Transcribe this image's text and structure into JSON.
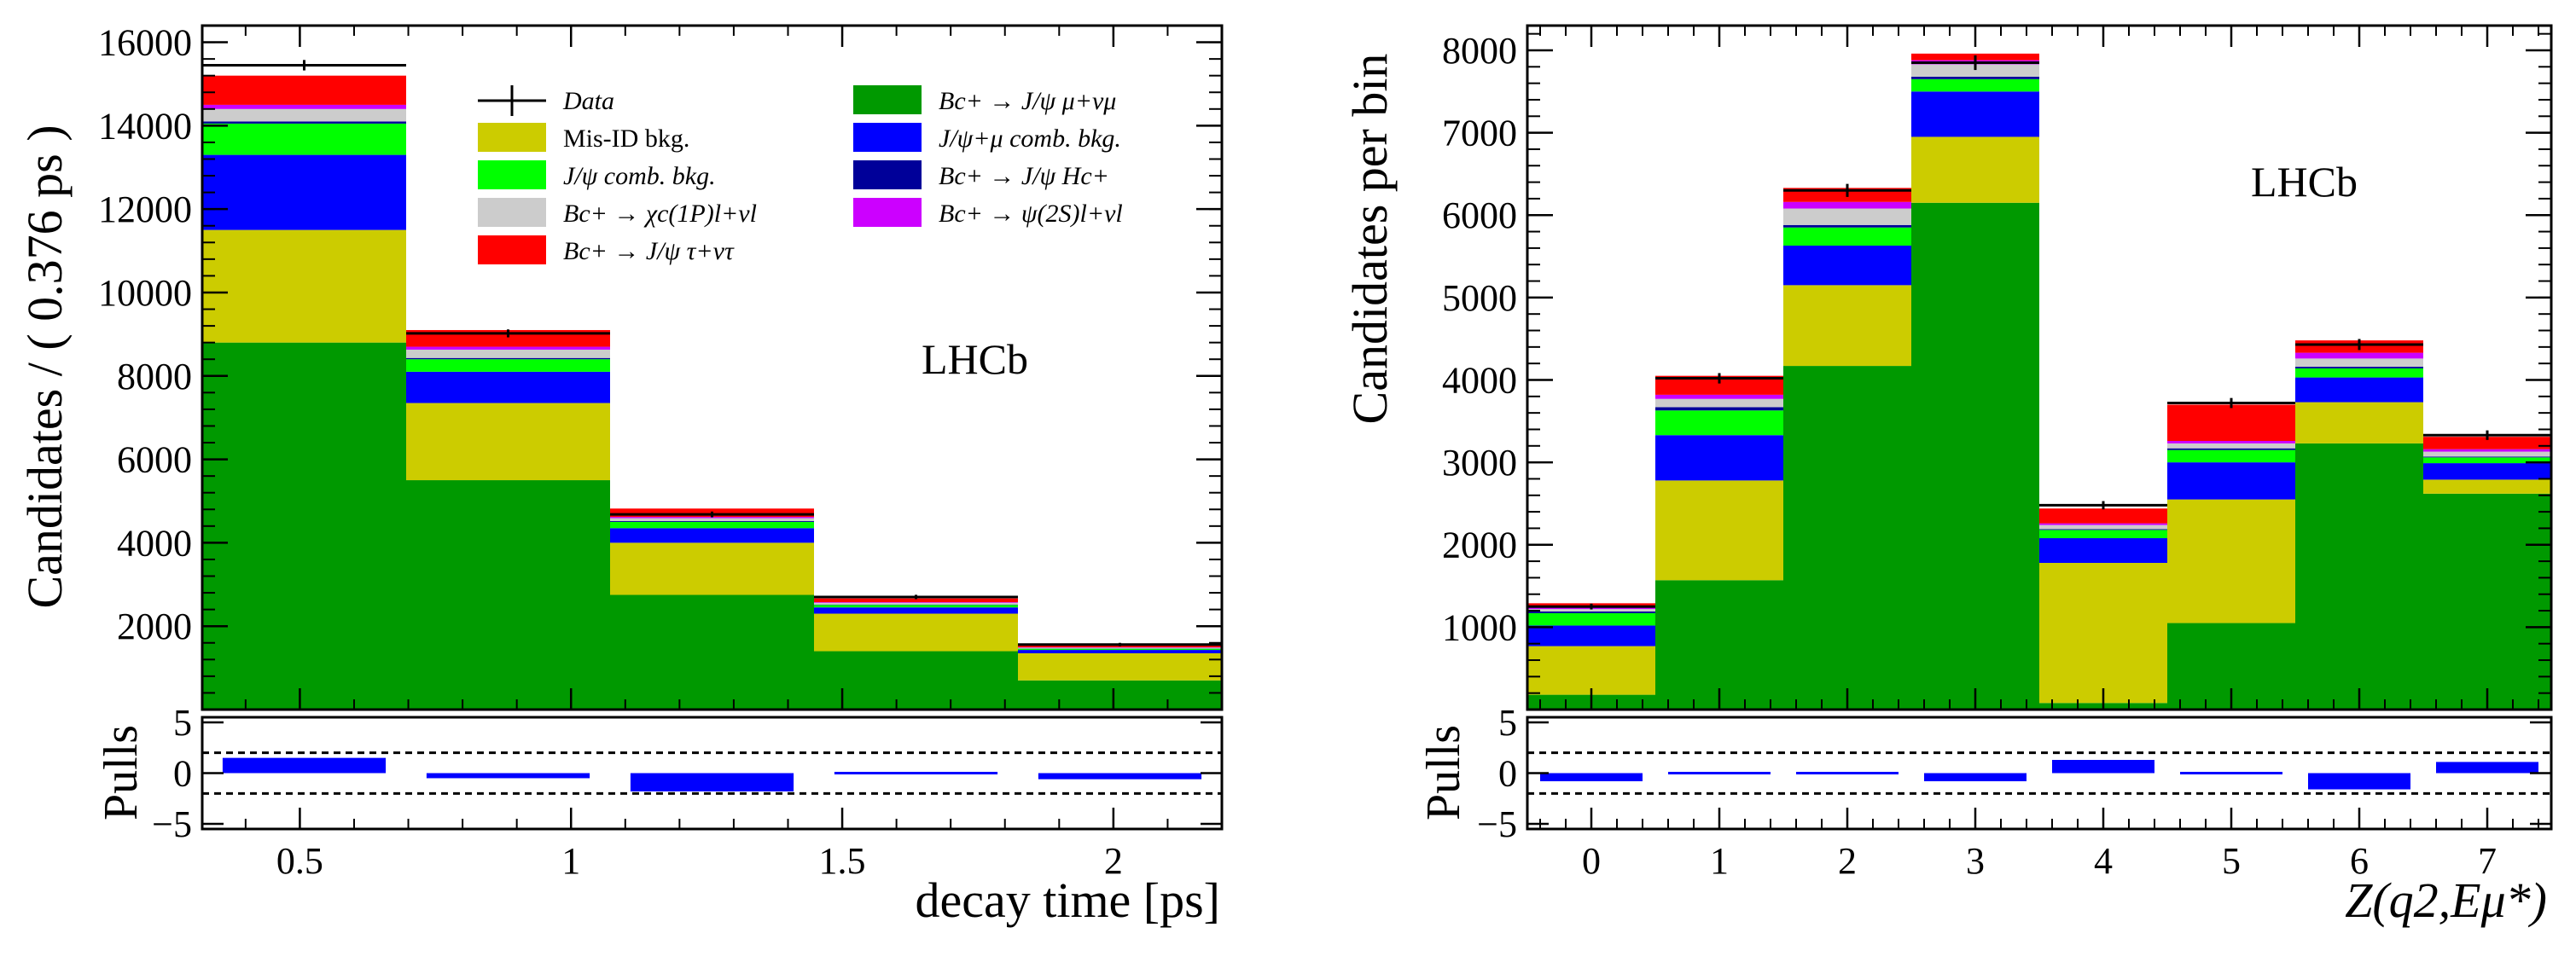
{
  "colors": {
    "bc_jpsi_mu_nu": "#009900",
    "misid": "#cccc00",
    "jpsi_mu_comb": "#0000ff",
    "jpsi_comb": "#00ff00",
    "bc_jpsi_hc": "#000099",
    "bc_chic": "#cccccc",
    "bc_psi2s": "#cc00ff",
    "bc_jpsi_tau_nu": "#ff0000",
    "data": "#000000",
    "pulls": "#0000ff"
  },
  "legend": {
    "items": [
      {
        "key": "data",
        "label": "Data"
      },
      {
        "key": "misid",
        "label": "Mis-ID bkg."
      },
      {
        "key": "jpsi_comb",
        "label": "J/ψ comb. bkg."
      },
      {
        "key": "bc_chic",
        "label": "Bc+ → χc(1P)l+νl"
      },
      {
        "key": "bc_jpsi_tau_nu",
        "label": "Bc+ → J/ψ τ+ντ"
      },
      {
        "key": "bc_jpsi_mu_nu",
        "label": "Bc+ → J/ψ μ+νμ"
      },
      {
        "key": "jpsi_mu_comb",
        "label": "J/ψ+μ comb. bkg."
      },
      {
        "key": "bc_jpsi_hc",
        "label": "Bc+ → J/ψ Hc+"
      },
      {
        "key": "bc_psi2s",
        "label": "Bc+ → ψ(2S)l+νl"
      }
    ]
  },
  "chart_data": [
    {
      "type": "bar",
      "stacked": true,
      "title": "",
      "label": "LHCb",
      "xlabel": "decay time [ps]",
      "ylabel": "Candidates / ( 0.376 ps )",
      "pull_label": "Pulls",
      "xlim": [
        0.32,
        2.2
      ],
      "ylim": [
        0,
        16400
      ],
      "x_ticks": [
        "0.5",
        "1",
        "1.5",
        "2"
      ],
      "y_ticks": [
        "2000",
        "4000",
        "6000",
        "8000",
        "10000",
        "12000",
        "14000",
        "16000"
      ],
      "pull_ticks": [
        "5",
        "0",
        "−5"
      ],
      "pull_ylim": [
        -5.5,
        5.5
      ],
      "pull_lines": [
        2,
        -2
      ],
      "bin_edges": [
        0.32,
        0.696,
        1.072,
        1.448,
        1.824,
        2.2
      ],
      "series": [
        {
          "key": "bc_jpsi_mu_nu",
          "values": [
            8800,
            5500,
            2750,
            1400,
            700
          ]
        },
        {
          "key": "misid",
          "values": [
            2700,
            1850,
            1250,
            900,
            650
          ]
        },
        {
          "key": "jpsi_mu_comb",
          "values": [
            1800,
            750,
            350,
            150,
            80
          ]
        },
        {
          "key": "jpsi_comb",
          "values": [
            750,
            300,
            150,
            60,
            30
          ]
        },
        {
          "key": "bc_jpsi_hc",
          "values": [
            50,
            30,
            20,
            10,
            5
          ]
        },
        {
          "key": "bc_chic",
          "values": [
            300,
            200,
            70,
            40,
            20
          ]
        },
        {
          "key": "bc_psi2s",
          "values": [
            100,
            70,
            30,
            15,
            8
          ]
        },
        {
          "key": "bc_jpsi_tau_nu",
          "values": [
            700,
            400,
            200,
            90,
            40
          ]
        }
      ],
      "data_points": [
        15450,
        9020,
        4680,
        2700,
        1560
      ],
      "data_errors": [
        125,
        95,
        68,
        52,
        40
      ],
      "pulls": [
        1.5,
        -0.5,
        -1.8,
        -0.1,
        -0.6
      ]
    },
    {
      "type": "bar",
      "stacked": true,
      "title": "",
      "label": "LHCb",
      "xlabel": "Z(q2,Eμ*)",
      "ylabel": "Candidates per bin",
      "pull_label": "Pulls",
      "xlim": [
        -0.5,
        7.5
      ],
      "ylim": [
        0,
        8300
      ],
      "x_ticks": [
        "0",
        "1",
        "2",
        "3",
        "4",
        "5",
        "6",
        "7"
      ],
      "y_ticks": [
        "1000",
        "2000",
        "3000",
        "4000",
        "5000",
        "6000",
        "7000",
        "8000"
      ],
      "pull_ticks": [
        "5",
        "0",
        "−5"
      ],
      "pull_ylim": [
        -5.5,
        5.5
      ],
      "pull_lines": [
        2,
        -2
      ],
      "bin_edges": [
        -0.5,
        0.5,
        1.5,
        2.5,
        3.5,
        4.5,
        5.5,
        6.5,
        7.5
      ],
      "series": [
        {
          "key": "bc_jpsi_mu_nu",
          "values": [
            180,
            1570,
            4170,
            6150,
            80,
            1050,
            3230,
            2620
          ]
        },
        {
          "key": "misid",
          "values": [
            590,
            1210,
            980,
            800,
            1700,
            1500,
            500,
            170
          ]
        },
        {
          "key": "jpsi_mu_comb",
          "values": [
            250,
            550,
            480,
            550,
            300,
            450,
            300,
            200
          ]
        },
        {
          "key": "jpsi_comb",
          "values": [
            150,
            300,
            220,
            150,
            100,
            150,
            110,
            70
          ]
        },
        {
          "key": "bc_jpsi_hc",
          "values": [
            20,
            40,
            30,
            30,
            10,
            20,
            20,
            10
          ]
        },
        {
          "key": "bc_chic",
          "values": [
            30,
            100,
            200,
            150,
            50,
            60,
            100,
            60
          ]
        },
        {
          "key": "bc_psi2s",
          "values": [
            20,
            50,
            80,
            50,
            20,
            30,
            70,
            30
          ]
        },
        {
          "key": "bc_jpsi_tau_nu",
          "values": [
            50,
            230,
            170,
            80,
            180,
            440,
            150,
            150
          ]
        }
      ],
      "data_points": [
        1250,
        4020,
        6300,
        7850,
        2480,
        3720,
        4430,
        3330
      ],
      "data_errors": [
        35,
        63,
        79,
        89,
        50,
        61,
        67,
        58
      ],
      "pulls": [
        -0.8,
        0.2,
        -0.1,
        -0.8,
        1.3,
        -0.05,
        -1.6,
        1.1
      ]
    }
  ]
}
